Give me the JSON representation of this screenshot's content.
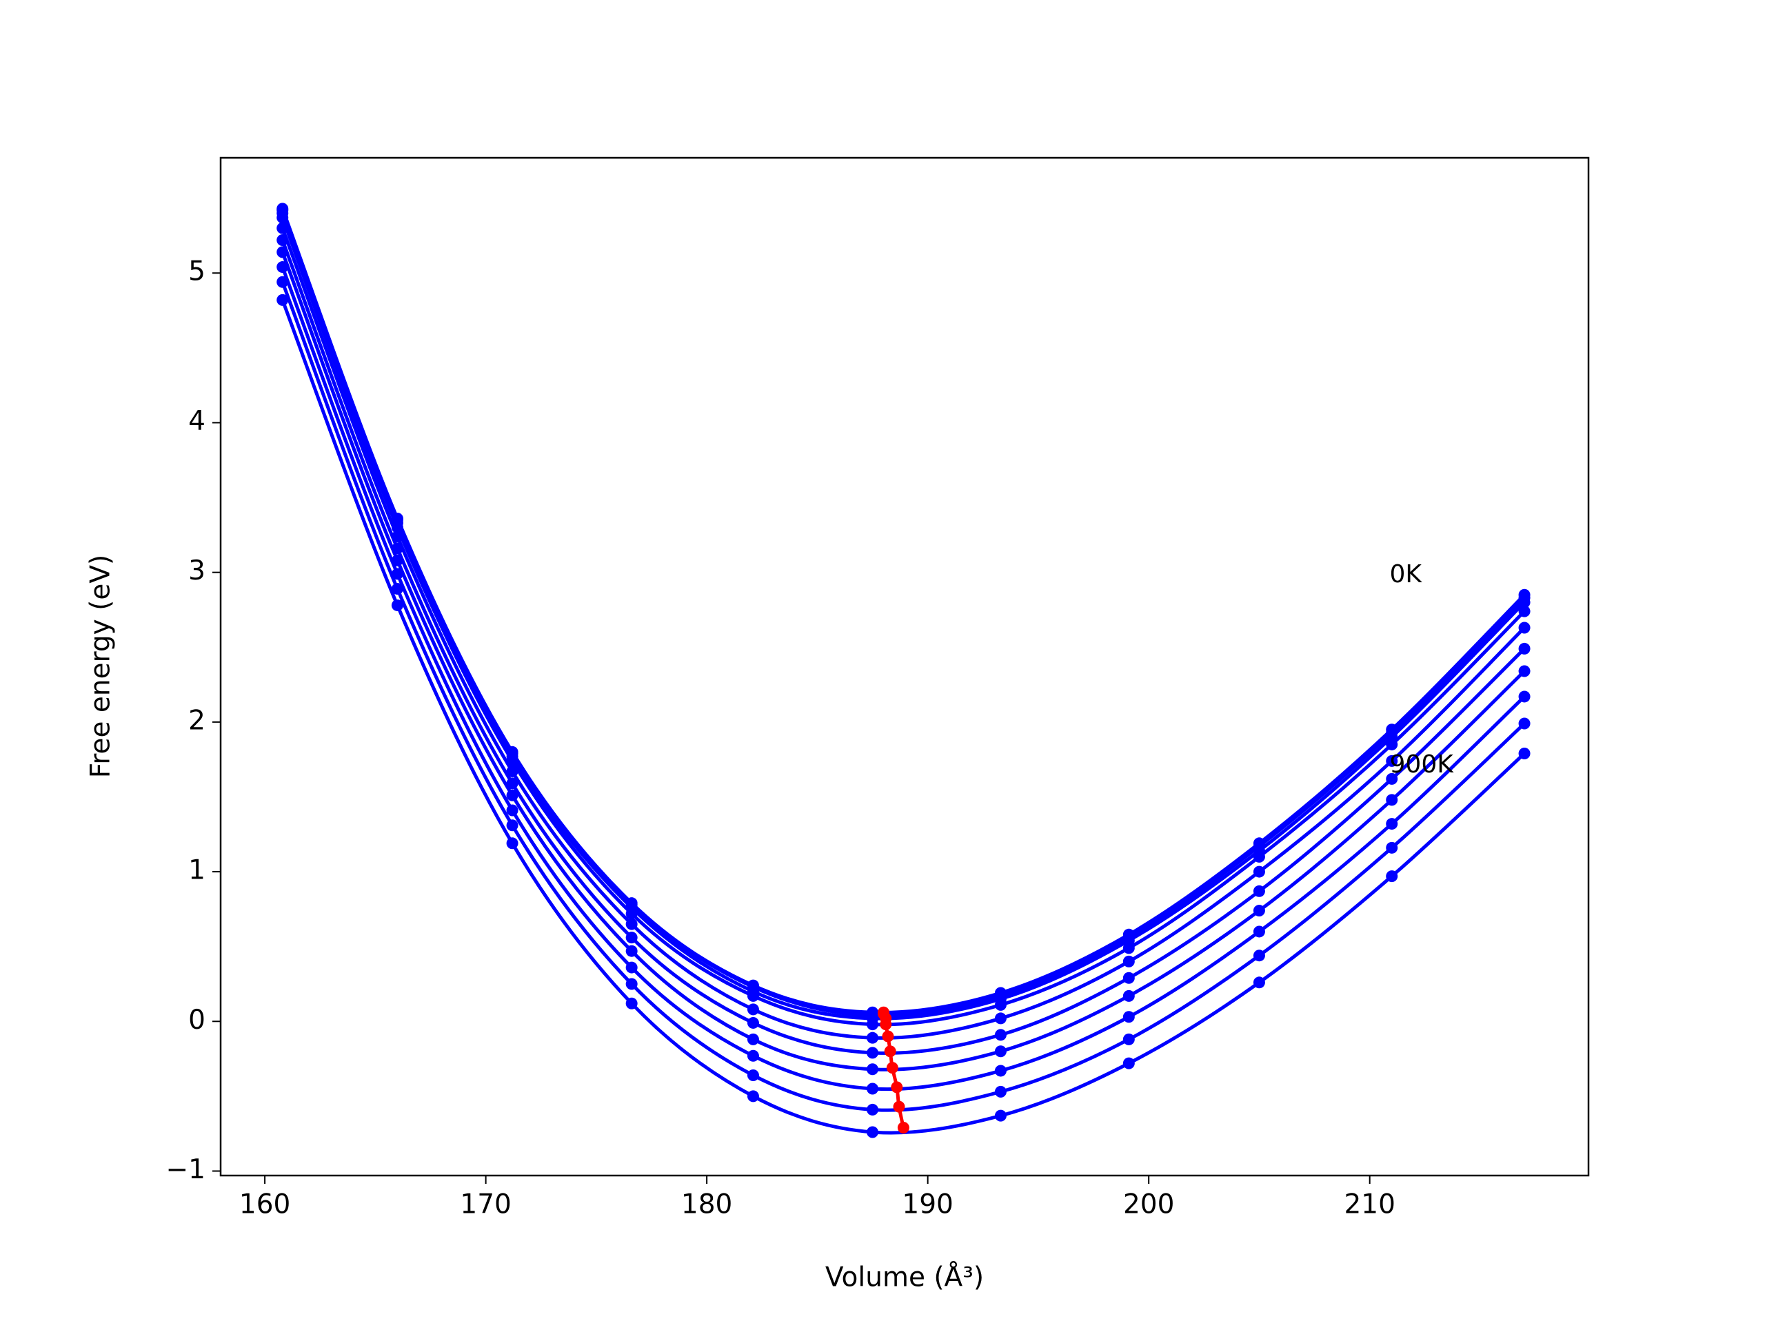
{
  "chart_data": {
    "type": "line",
    "xlabel": "Volume (Å³)",
    "ylabel": "Free energy (eV)",
    "x": [
      160.8,
      166.0,
      171.2,
      176.6,
      182.1,
      187.5,
      193.3,
      199.1,
      205.0,
      211.0,
      217.0
    ],
    "series": [
      {
        "color": "#0000ff",
        "values": [
          5.43,
          3.36,
          1.8,
          0.79,
          0.24,
          0.06,
          0.19,
          0.58,
          1.19,
          1.95,
          2.85
        ]
      },
      {
        "color": "#0000ff",
        "values": [
          5.42,
          3.35,
          1.79,
          0.78,
          0.23,
          0.04,
          0.17,
          0.56,
          1.17,
          1.93,
          2.83
        ]
      },
      {
        "color": "#0000ff",
        "values": [
          5.4,
          3.33,
          1.77,
          0.76,
          0.2,
          0.02,
          0.15,
          0.54,
          1.14,
          1.9,
          2.8
        ]
      },
      {
        "color": "#0000ff",
        "values": [
          5.37,
          3.3,
          1.74,
          0.72,
          0.17,
          -0.02,
          0.11,
          0.49,
          1.1,
          1.85,
          2.74
        ]
      },
      {
        "color": "#0000ff",
        "values": [
          5.3,
          3.24,
          1.67,
          0.65,
          0.08,
          -0.11,
          0.02,
          0.4,
          1.0,
          1.74,
          2.63
        ]
      },
      {
        "color": "#0000ff",
        "values": [
          5.22,
          3.16,
          1.59,
          0.56,
          -0.01,
          -0.21,
          -0.09,
          0.29,
          0.87,
          1.62,
          2.49
        ]
      },
      {
        "color": "#0000ff",
        "values": [
          5.14,
          3.08,
          1.51,
          0.47,
          -0.12,
          -0.32,
          -0.2,
          0.17,
          0.74,
          1.48,
          2.34
        ]
      },
      {
        "color": "#0000ff",
        "values": [
          5.04,
          2.99,
          1.41,
          0.36,
          -0.23,
          -0.45,
          -0.33,
          0.03,
          0.6,
          1.32,
          2.17
        ]
      },
      {
        "color": "#0000ff",
        "values": [
          4.94,
          2.89,
          1.31,
          0.25,
          -0.36,
          -0.59,
          -0.47,
          -0.12,
          0.44,
          1.16,
          1.99
        ]
      },
      {
        "color": "#0000ff",
        "values": [
          4.82,
          2.78,
          1.19,
          0.12,
          -0.5,
          -0.74,
          -0.63,
          -0.28,
          0.26,
          0.97,
          1.79
        ]
      },
      {
        "color": "#ff0000",
        "x": [
          188.0,
          188.0,
          188.1,
          188.1,
          188.2,
          188.3,
          188.4,
          188.6,
          188.7,
          188.9
        ],
        "values": [
          0.06,
          0.05,
          0.02,
          -0.02,
          -0.1,
          -0.2,
          -0.31,
          -0.44,
          -0.57,
          -0.71
        ]
      }
    ],
    "annotations": [
      {
        "text": "0K",
        "x": 210.9,
        "y": 2.98
      },
      {
        "text": "900K",
        "x": 210.9,
        "y": 1.71
      }
    ],
    "xlim": [
      158.0,
      219.9
    ],
    "ylim": [
      -1.03,
      5.77
    ],
    "xticks": [
      160,
      170,
      180,
      190,
      200,
      210
    ],
    "yticks": [
      {
        "value": -1,
        "label": "−1"
      },
      0,
      1,
      2,
      3,
      4,
      5
    ]
  }
}
